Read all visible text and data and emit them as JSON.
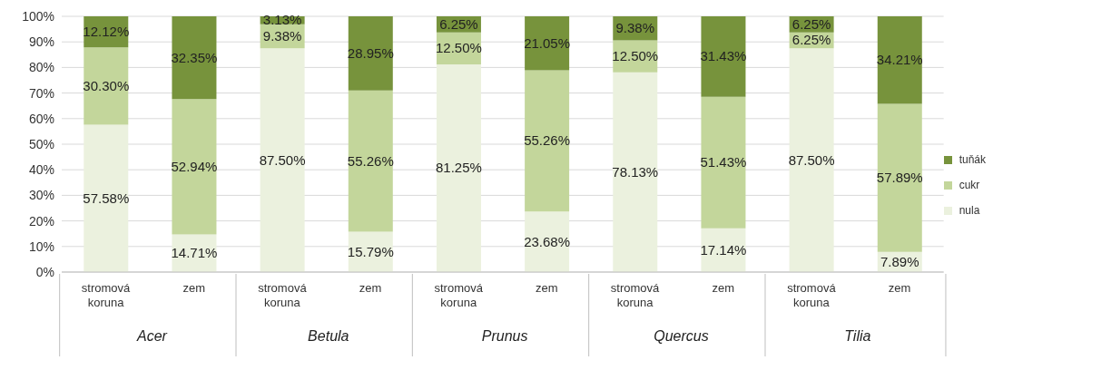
{
  "chart_data": {
    "type": "bar",
    "stacked": true,
    "categories": [
      "stromová koruna",
      "zem",
      "stromová koruna",
      "zem",
      "stromová koruna",
      "zem",
      "stromová koruna",
      "zem",
      "stromová koruna",
      "zem"
    ],
    "annotations": [
      "Acer",
      "Betula",
      "Prunus",
      "Quercus",
      "Tilia"
    ],
    "series": [
      {
        "name": "nula",
        "color": "#ebf1de",
        "values": [
          57.58,
          14.71,
          87.5,
          15.79,
          81.25,
          23.68,
          78.13,
          17.14,
          87.5,
          7.89
        ],
        "value_labels": [
          "57.58%",
          "14.71%",
          "87.50%",
          "15.79%",
          "81.25%",
          "23.68%",
          "78.13%",
          "17.14%",
          "87.50%",
          "7.89%"
        ]
      },
      {
        "name": "cukr",
        "color": "#c3d69b",
        "values": [
          30.3,
          52.94,
          9.38,
          55.26,
          12.5,
          55.26,
          12.5,
          51.43,
          6.25,
          57.89
        ],
        "value_labels": [
          "30.30%",
          "52.94%",
          "9.38%",
          "55.26%",
          "12.50%",
          "55.26%",
          "12.50%",
          "51.43%",
          "6.25%",
          "57.89%"
        ]
      },
      {
        "name": "tuňák",
        "color": "#77933c",
        "values": [
          12.12,
          32.35,
          3.13,
          28.95,
          6.25,
          21.05,
          9.38,
          31.43,
          6.25,
          34.21
        ],
        "value_labels": [
          "12.12%",
          "32.35%",
          "3.13%",
          "28.95%",
          "6.25%",
          "21.05%",
          "9.38%",
          "31.43%",
          "6.25%",
          "34.21%"
        ]
      }
    ],
    "ylim": [
      0,
      100
    ],
    "yticks": [
      {
        "value": 0,
        "label": "0%"
      },
      {
        "value": 10,
        "label": "10%"
      },
      {
        "value": 20,
        "label": "20%"
      },
      {
        "value": 30,
        "label": "30%"
      },
      {
        "value": 40,
        "label": "40%"
      },
      {
        "value": 50,
        "label": "50%"
      },
      {
        "value": 60,
        "label": "60%"
      },
      {
        "value": 70,
        "label": "70%"
      },
      {
        "value": 80,
        "label": "80%"
      },
      {
        "value": 90,
        "label": "90%"
      },
      {
        "value": 100,
        "label": "100%"
      }
    ],
    "grid": "y",
    "legend": "right"
  }
}
